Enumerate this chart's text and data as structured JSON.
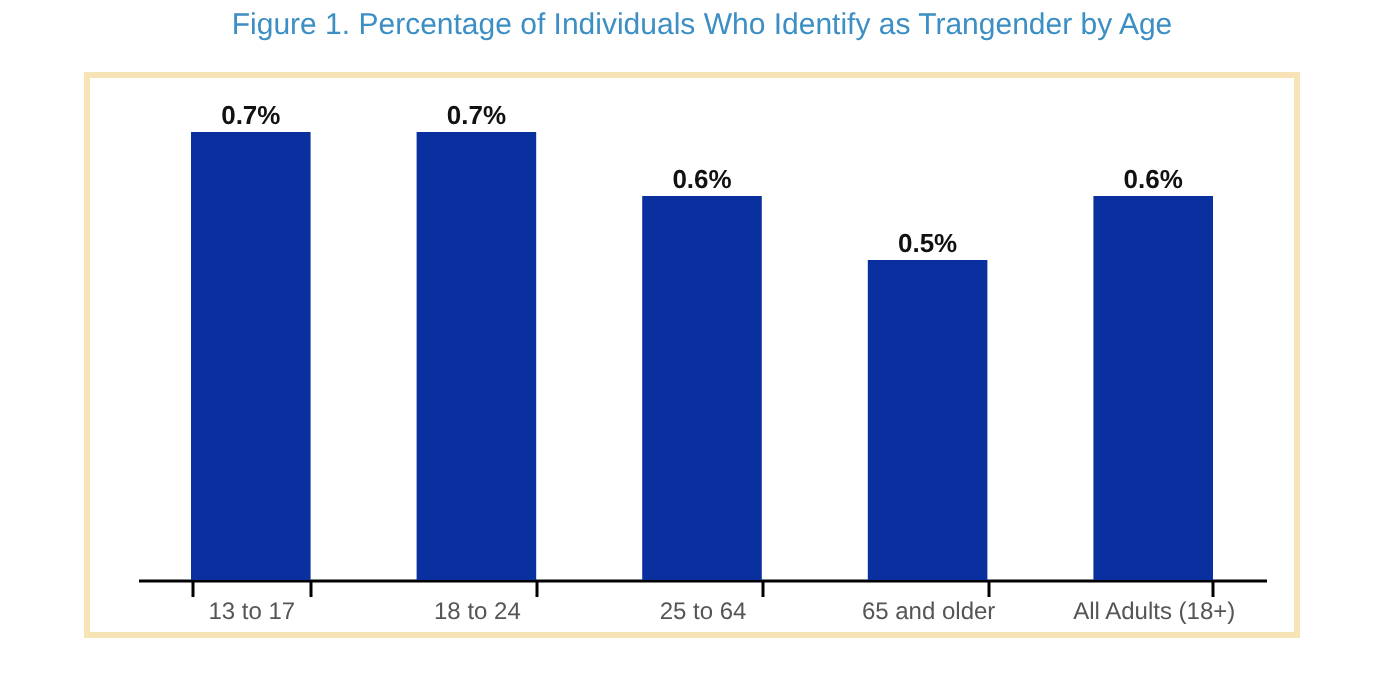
{
  "chart_data": {
    "type": "bar",
    "title": "Figure 1. Percentage of Individuals Who Identify as Trangender by Age",
    "categories": [
      "13 to 17",
      "18 to 24",
      "25 to 64",
      "65 and older",
      "All Adults (18+)"
    ],
    "values": [
      0.7,
      0.7,
      0.6,
      0.5,
      0.6
    ],
    "value_labels": [
      "0.7%",
      "0.7%",
      "0.6%",
      "0.5%",
      "0.6%"
    ],
    "color": "#0a2f9e"
  }
}
